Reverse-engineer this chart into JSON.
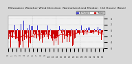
{
  "title": "Milwaukee Weather Wind Direction  Normalized and Median  (24 Hours) (New)",
  "title_fontsize": 3.2,
  "n_points": 288,
  "seed": 7,
  "bar_color_main": "#cc0000",
  "bar_color_alt": "#3333cc",
  "background_color": "#f0f0f0",
  "ylim": [
    -6.0,
    5.0
  ],
  "yticks": [
    4,
    2,
    0,
    -2,
    -4,
    -6
  ],
  "legend_labels": [
    "Normalized",
    "Median"
  ],
  "legend_colors": [
    "#3333cc",
    "#cc0000"
  ],
  "x_tick_fontsize": 1.8,
  "y_tick_fontsize": 2.2,
  "grid_color": "#aaaaaa",
  "fig_bg": "#d8d8d8",
  "bar_width": 1.0,
  "median_window": 20,
  "median_color": "#dd0000",
  "median_lw": 0.6
}
